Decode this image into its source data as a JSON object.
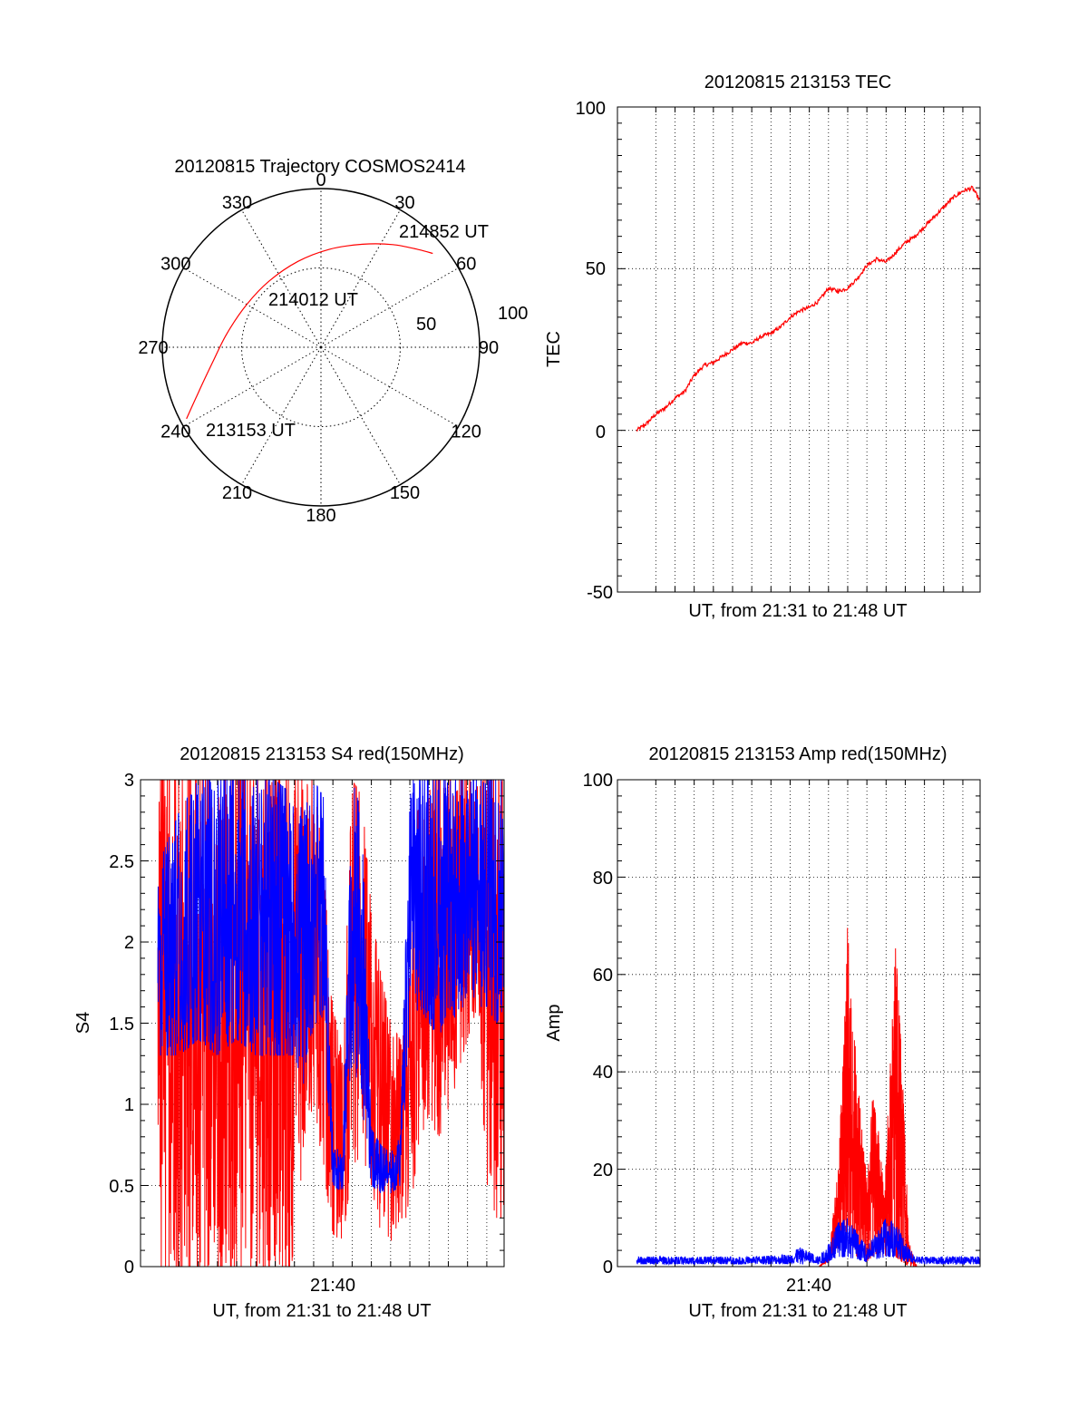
{
  "colors": {
    "red": "#ff0000",
    "blue": "#0000ff",
    "axis": "#000000",
    "grid": "#000000"
  },
  "polar": {
    "title": "20120815 Trajectory COSMOS2414",
    "azimuth_labels": [
      "0",
      "30",
      "60",
      "90",
      "120",
      "150",
      "180",
      "210",
      "240",
      "270",
      "300",
      "330"
    ],
    "ring_labels": [
      "50",
      "100"
    ],
    "start_label": "213153 UT",
    "mid_label": "214012 UT",
    "end_label": "214852 UT"
  },
  "tec": {
    "title": "20120815 213153 TEC",
    "ylabel": "TEC",
    "xlabel": "UT, from 21:31 to 21:48 UT",
    "ytick_labels": [
      "100",
      "50",
      "0",
      "-50"
    ]
  },
  "s4": {
    "title": "20120815 213153 S4 red(150MHz)",
    "ylabel": "S4",
    "xlabel": "UT, from 21:31 to 21:48 UT",
    "xtick_label": "21:40",
    "ytick_labels": [
      "3",
      "2.5",
      "2",
      "1.5",
      "1",
      "0.5",
      "0"
    ]
  },
  "amp": {
    "title": "20120815 213153 Amp red(150MHz)",
    "ylabel": "Amp",
    "xlabel": "UT, from 21:31 to 21:48 UT",
    "xtick_label": "21:40",
    "ytick_labels": [
      "100",
      "80",
      "60",
      "40",
      "20",
      "0"
    ]
  },
  "chart_data": [
    {
      "type": "scatter",
      "subtype": "polar-trajectory",
      "title": "20120815 Trajectory COSMOS2414",
      "angle_unit": "degrees azimuth (0 at top, clockwise)",
      "r_max": 100,
      "series": [
        {
          "color": "#ff0000",
          "points": [
            {
              "az": 242,
              "r": 96
            },
            {
              "az": 250,
              "r": 82
            },
            {
              "az": 262,
              "r": 69
            },
            {
              "az": 278,
              "r": 60
            },
            {
              "az": 300,
              "r": 54
            },
            {
              "az": 322,
              "r": 53
            },
            {
              "az": 345,
              "r": 56
            },
            {
              "az": 5,
              "r": 62
            },
            {
              "az": 22,
              "r": 70
            },
            {
              "az": 35,
              "r": 79
            },
            {
              "az": 45,
              "r": 87
            },
            {
              "az": 50,
              "r": 92
            }
          ]
        }
      ],
      "annotations": [
        "213153 UT",
        "214012 UT",
        "214852 UT"
      ]
    },
    {
      "type": "line",
      "title": "20120815 213153 TEC",
      "xlabel": "UT, from 21:31 to 21:48 UT",
      "ylabel": "TEC",
      "x_unit": "minutes after 21:31 UT",
      "xlim": [
        0,
        17.9
      ],
      "ylim": [
        -50,
        100
      ],
      "grid": true,
      "series": [
        {
          "color": "#ff0000",
          "x": [
            0,
            0.5,
            1,
            1.5,
            2,
            2.5,
            3,
            3.5,
            4,
            4.5,
            5,
            5.5,
            6,
            6.5,
            7,
            7.5,
            8,
            8.5,
            9,
            9.5,
            10,
            10.5,
            11,
            11.5,
            12,
            12.5,
            13,
            13.5,
            14,
            14.5,
            15,
            15.5,
            16,
            16.5,
            17,
            17.5,
            17.9
          ],
          "y": [
            0,
            2,
            5,
            7,
            10,
            12,
            17,
            20,
            21,
            23,
            25,
            27,
            27,
            29,
            30,
            32,
            35,
            37,
            38,
            40,
            44,
            43,
            44,
            47,
            51,
            53,
            52,
            55,
            58,
            60,
            63,
            66,
            69,
            72,
            74,
            75,
            71
          ]
        }
      ]
    },
    {
      "type": "line",
      "title": "20120815 213153 S4 red(150MHz)",
      "xlabel": "UT, from 21:31 to 21:48 UT",
      "ylabel": "S4",
      "x_unit": "minutes after 21:31 UT",
      "xlim": [
        0,
        17.9
      ],
      "ylim": [
        0,
        3
      ],
      "xticks": [
        "21:40"
      ],
      "grid": true,
      "series": [
        {
          "color": "#ff0000",
          "envelope_x": [
            0,
            1,
            2,
            3,
            4,
            5,
            6,
            7,
            7.5,
            8,
            8.5,
            9,
            9.5,
            10,
            10.5,
            11,
            11.5,
            12,
            12.5,
            13,
            13.5,
            14,
            14.5,
            15,
            15.5,
            16,
            16.5,
            17,
            17.5,
            17.9
          ],
          "min": [
            0,
            0,
            0,
            0,
            0,
            0,
            0,
            0,
            0.8,
            1.0,
            0.6,
            0.2,
            0.15,
            0.6,
            0.7,
            0.5,
            0.2,
            0.15,
            0.3,
            0.3,
            0.8,
            0.9,
            0.8,
            0.9,
            1.2,
            1.4,
            1.6,
            0.5,
            0.3,
            0.3
          ],
          "max": [
            3,
            3,
            3,
            3,
            3,
            3,
            3,
            3,
            3,
            3,
            2.5,
            1.6,
            1.3,
            3,
            2.9,
            2.2,
            1.8,
            1.5,
            1.4,
            1.9,
            3,
            3,
            3,
            3,
            3,
            3,
            3,
            3,
            3,
            3
          ]
        },
        {
          "color": "#0000ff",
          "envelope_x": [
            0,
            1,
            2,
            3,
            4,
            5,
            6,
            7,
            7.5,
            8,
            8.5,
            9,
            9.5,
            10,
            10.5,
            11,
            11.5,
            12,
            12.5,
            13,
            13.5,
            14,
            14.5,
            15,
            15.5,
            16,
            16.5,
            17,
            17.5,
            17.9
          ],
          "min": [
            1.3,
            1.3,
            1.4,
            1.3,
            1.4,
            1.3,
            1.3,
            1.3,
            1.1,
            1.5,
            1.5,
            0.5,
            0.45,
            1.3,
            1.0,
            0.5,
            0.45,
            0.45,
            0.5,
            1.5,
            1.6,
            1.5,
            1.4,
            1.6,
            1.5,
            1.7,
            1.6,
            1.6,
            1.5,
            1.6
          ],
          "max": [
            2.5,
            2.8,
            3,
            3,
            3,
            3,
            3,
            2.9,
            2.8,
            3,
            2.9,
            0.75,
            0.7,
            3,
            2.8,
            0.85,
            0.75,
            0.7,
            0.8,
            3,
            3,
            3,
            3,
            3,
            3,
            3,
            3,
            3,
            3,
            3
          ]
        }
      ]
    },
    {
      "type": "line",
      "title": "20120815 213153 Amp red(150MHz)",
      "xlabel": "UT, from 21:31 to 21:48 UT",
      "ylabel": "Amp",
      "x_unit": "minutes after 21:31 UT",
      "xlim": [
        0,
        17.9
      ],
      "ylim": [
        0,
        100
      ],
      "xticks": [
        "21:40"
      ],
      "grid": true,
      "series": [
        {
          "color": "#ff0000",
          "envelope_x": [
            0,
            9.5,
            10.0,
            10.5,
            10.8,
            11.0,
            11.2,
            11.5,
            11.8,
            12.0,
            12.3,
            12.6,
            12.9,
            13.2,
            13.5,
            13.8,
            14.2,
            14.6,
            17.9
          ],
          "min": [
            0,
            0,
            1,
            4,
            6,
            5,
            4,
            2,
            1,
            1,
            2,
            3,
            2,
            3,
            2,
            1,
            0,
            0,
            0
          ],
          "max": [
            0,
            0,
            2,
            20,
            45,
            72,
            55,
            40,
            25,
            18,
            35,
            28,
            15,
            40,
            66,
            44,
            5,
            0,
            0
          ]
        },
        {
          "color": "#0000ff",
          "envelope_x": [
            0,
            2,
            4,
            6,
            8,
            8.5,
            9,
            9.5,
            10,
            10.5,
            11,
            11.5,
            12,
            12.5,
            13,
            13.5,
            14,
            14.5,
            15,
            16,
            17,
            17.9
          ],
          "min": [
            0.5,
            0.5,
            0.5,
            0.5,
            0.5,
            0.5,
            0.7,
            0.5,
            1,
            2,
            2,
            1.5,
            1,
            1.5,
            2,
            2,
            1,
            0.8,
            0.5,
            0.5,
            0.5,
            0.5
          ],
          "max": [
            2,
            2,
            2,
            2,
            2.5,
            4,
            3,
            2,
            5,
            9,
            10,
            7,
            4,
            7,
            10,
            9,
            5,
            2,
            2,
            2,
            2,
            2
          ]
        }
      ]
    }
  ]
}
